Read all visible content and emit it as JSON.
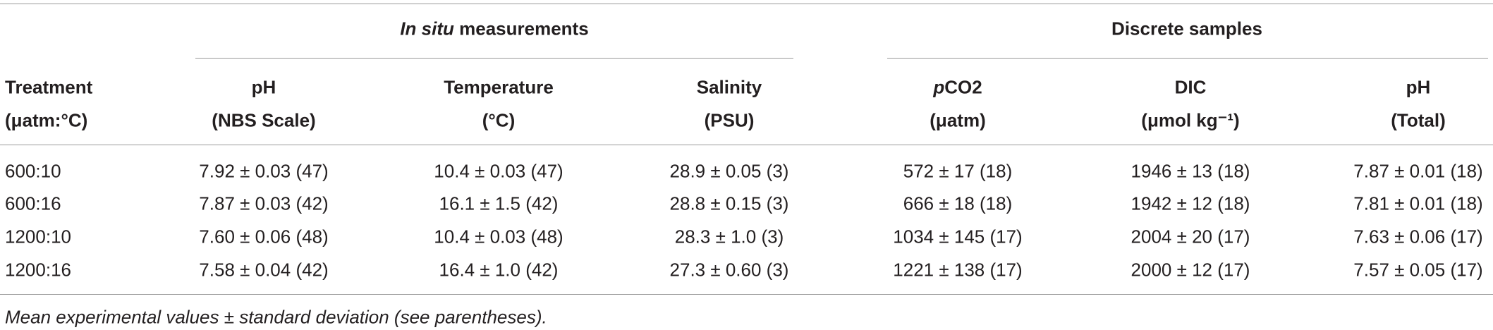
{
  "group_headers": [
    {
      "italic": "In situ",
      "text": "measurements"
    },
    {
      "text": "Discrete samples"
    }
  ],
  "columns": [
    {
      "name": "Treatment",
      "unit": "(μatm:°C)"
    },
    {
      "name": "pH",
      "unit": "(NBS Scale)"
    },
    {
      "name": "Temperature",
      "unit": "(°C)"
    },
    {
      "name": "Salinity",
      "unit": "(PSU)"
    },
    {
      "italic": "p",
      "name": "CO2",
      "unit": "(μatm)"
    },
    {
      "name": "DIC",
      "unit": "(μmol kg⁻¹)"
    },
    {
      "name": "pH",
      "unit": "(Total)"
    }
  ],
  "rows": [
    [
      "600:10",
      "7.92 ± 0.03 (47)",
      "10.4 ± 0.03 (47)",
      "28.9 ± 0.05 (3)",
      "572 ± 17 (18)",
      "1946 ± 13 (18)",
      "7.87 ± 0.01 (18)"
    ],
    [
      "600:16",
      "7.87 ± 0.03 (42)",
      "16.1 ± 1.5 (42)",
      "28.8 ± 0.15 (3)",
      "666 ± 18 (18)",
      "1942 ± 12 (18)",
      "7.81 ± 0.01 (18)"
    ],
    [
      "1200:10",
      "7.60 ± 0.06 (48)",
      "10.4 ± 0.03 (48)",
      "28.3 ± 1.0 (3)",
      "1034 ± 145 (17)",
      "2004 ± 20 (17)",
      "7.63 ± 0.06 (17)"
    ],
    [
      "1200:16",
      "7.58 ± 0.04 (42)",
      "16.4 ± 1.0 (42)",
      "27.3 ± 0.60 (3)",
      "1221 ± 138 (17)",
      "2000 ± 12 (17)",
      "7.57 ± 0.05 (17)"
    ]
  ],
  "footnote": "Mean experimental values ± standard deviation (see parentheses)."
}
